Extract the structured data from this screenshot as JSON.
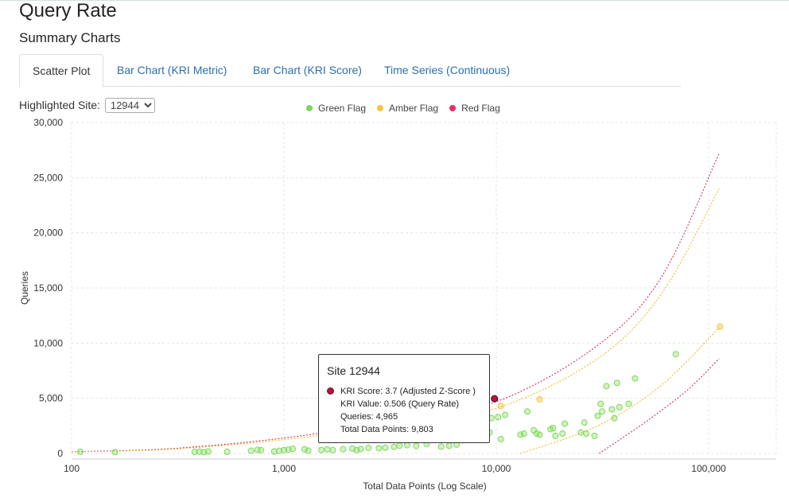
{
  "header": {
    "title": "Query Rate",
    "subtitle": "Summary Charts"
  },
  "tabs": [
    {
      "label": "Scatter Plot",
      "active": true
    },
    {
      "label": "Bar Chart (KRI Metric)",
      "active": false
    },
    {
      "label": "Bar Chart (KRI Score)",
      "active": false
    },
    {
      "label": "Time Series (Continuous)",
      "active": false
    }
  ],
  "site_selector": {
    "label": "Highlighted Site:",
    "selected": "12944"
  },
  "colors": {
    "green": "#7ed957",
    "amber": "#f5c542",
    "red": "#e6305f",
    "red_line": "#cc1f4a",
    "amber_line": "#f0b414",
    "link": "#2a6fb0"
  },
  "tooltip": {
    "title": "Site 12944",
    "lines": [
      "KRI Score: 3.7 (Adjusted Z-Score )",
      "KRI Value: 0.506 (Query Rate)",
      "Queries: 4,965",
      "Total Data Points: 9,803"
    ]
  },
  "chart_data": {
    "type": "scatter",
    "xlabel": "Total Data Points (Log Scale)",
    "ylabel": "Queries",
    "xscale": "log",
    "xlim": [
      100,
      200000
    ],
    "ylim": [
      0,
      30000
    ],
    "xticks": [
      {
        "value": 100,
        "label": "100"
      },
      {
        "value": 1000,
        "label": "1,000"
      },
      {
        "value": 10000,
        "label": "10,000"
      },
      {
        "value": 100000,
        "label": "100,000"
      }
    ],
    "yticks": [
      {
        "value": 0,
        "label": "0"
      },
      {
        "value": 5000,
        "label": "5,000"
      },
      {
        "value": 10000,
        "label": "10,000"
      },
      {
        "value": 15000,
        "label": "15,000"
      },
      {
        "value": 20000,
        "label": "20,000"
      },
      {
        "value": 25000,
        "label": "25,000"
      },
      {
        "value": 30000,
        "label": "30,000"
      }
    ],
    "grid": true,
    "legend": {
      "position": "top",
      "entries": [
        {
          "name": "Green Flag",
          "color": "#7ed957"
        },
        {
          "name": "Amber Flag",
          "color": "#f5c542"
        },
        {
          "name": "Red Flag",
          "color": "#e6305f"
        }
      ]
    },
    "series": [
      {
        "name": "Green Flag",
        "points": [
          [
            110,
            150
          ],
          [
            160,
            120
          ],
          [
            380,
            140
          ],
          [
            400,
            160
          ],
          [
            420,
            120
          ],
          [
            440,
            180
          ],
          [
            540,
            150
          ],
          [
            700,
            250
          ],
          [
            750,
            330
          ],
          [
            780,
            300
          ],
          [
            900,
            180
          ],
          [
            950,
            240
          ],
          [
            1000,
            300
          ],
          [
            1050,
            350
          ],
          [
            1100,
            420
          ],
          [
            1250,
            380
          ],
          [
            1300,
            250
          ],
          [
            1500,
            320
          ],
          [
            1600,
            370
          ],
          [
            1700,
            300
          ],
          [
            1900,
            380
          ],
          [
            2100,
            450
          ],
          [
            2200,
            300
          ],
          [
            2300,
            400
          ],
          [
            2500,
            500
          ],
          [
            2800,
            480
          ],
          [
            3000,
            520
          ],
          [
            3300,
            600
          ],
          [
            3500,
            700
          ],
          [
            3800,
            750
          ],
          [
            4200,
            680
          ],
          [
            4700,
            850
          ],
          [
            5500,
            620
          ],
          [
            6000,
            700
          ],
          [
            6500,
            800
          ],
          [
            7000,
            1200
          ],
          [
            8500,
            1800
          ],
          [
            9300,
            1900
          ],
          [
            9500,
            3200
          ],
          [
            10200,
            3300
          ],
          [
            10500,
            1300
          ],
          [
            11000,
            3500
          ],
          [
            13000,
            1700
          ],
          [
            13500,
            1800
          ],
          [
            14000,
            3800
          ],
          [
            15000,
            2100
          ],
          [
            15500,
            1800
          ],
          [
            16000,
            1700
          ],
          [
            18000,
            2200
          ],
          [
            18500,
            2300
          ],
          [
            19000,
            1600
          ],
          [
            20500,
            1800
          ],
          [
            21000,
            2700
          ],
          [
            25000,
            1900
          ],
          [
            26000,
            2800
          ],
          [
            26500,
            1800
          ],
          [
            29000,
            1600
          ],
          [
            30000,
            3400
          ],
          [
            31000,
            4500
          ],
          [
            31500,
            3800
          ],
          [
            33000,
            6100
          ],
          [
            35000,
            4000
          ],
          [
            36000,
            3200
          ],
          [
            37000,
            6400
          ],
          [
            38000,
            4200
          ],
          [
            42000,
            4500
          ],
          [
            45000,
            6800
          ],
          [
            70000,
            9000
          ]
        ]
      },
      {
        "name": "Amber Flag",
        "points": [
          [
            10500,
            4300
          ],
          [
            16000,
            4900
          ],
          [
            113000,
            11500
          ]
        ]
      },
      {
        "name": "Red Flag",
        "points": [
          [
            9803,
            4965
          ]
        ]
      }
    ],
    "bounds": [
      {
        "name": "Red upper",
        "x": [
          100,
          300,
          1000,
          3000,
          10000,
          30000,
          60000,
          112000
        ],
        "y": [
          150,
          450,
          1400,
          2800,
          4700,
          9800,
          16000,
          27200
        ]
      },
      {
        "name": "Amber upper",
        "x": [
          100,
          300,
          1000,
          3000,
          10000,
          30000,
          60000,
          112000
        ],
        "y": [
          130,
          400,
          1250,
          2450,
          4100,
          8600,
          14500,
          24000
        ]
      },
      {
        "name": "Amber lower",
        "x": [
          13000,
          30000,
          60000,
          112000
        ],
        "y": [
          0,
          2500,
          6200,
          11400
        ]
      },
      {
        "name": "Red lower",
        "x": [
          30500,
          50000,
          80000,
          112000
        ],
        "y": [
          0,
          2800,
          5800,
          8600
        ]
      }
    ]
  }
}
